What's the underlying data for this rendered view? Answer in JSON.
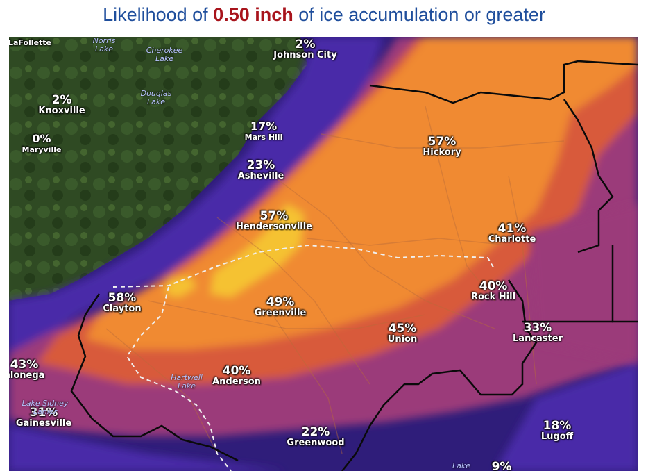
{
  "title": {
    "prefix": "Likelihood of ",
    "highlight": "0.50 inch",
    "suffix": " of ice accumulation or greater"
  },
  "colors": {
    "title_text": "#1f4e9c",
    "title_highlight": "#a8141c",
    "green_terrain": "#2f4a23",
    "deep_purple": "#2f1d7a",
    "purple": "#4a2aa8",
    "magenta": "#9b3a7a",
    "red_orange": "#d85a3a",
    "orange": "#f08a32",
    "yellow": "#f5c232"
  },
  "cities": [
    {
      "id": "lafollette",
      "pct": "",
      "name": "LaFollette"
    },
    {
      "id": "johnson-city",
      "pct": "2%",
      "name": "Johnson City"
    },
    {
      "id": "knoxville",
      "pct": "2%",
      "name": "Knoxville"
    },
    {
      "id": "maryville",
      "pct": "0%",
      "name": "Maryville"
    },
    {
      "id": "mars-hill",
      "pct": "17%",
      "name": "Mars Hill"
    },
    {
      "id": "asheville",
      "pct": "23%",
      "name": "Asheville"
    },
    {
      "id": "hickory",
      "pct": "57%",
      "name": "Hickory"
    },
    {
      "id": "hendersonville",
      "pct": "57%",
      "name": "Hendersonville"
    },
    {
      "id": "charlotte",
      "pct": "41%",
      "name": "Charlotte"
    },
    {
      "id": "clayton",
      "pct": "58%",
      "name": "Clayton"
    },
    {
      "id": "greenville",
      "pct": "49%",
      "name": "Greenville"
    },
    {
      "id": "rock-hill",
      "pct": "40%",
      "name": "Rock Hill"
    },
    {
      "id": "union",
      "pct": "45%",
      "name": "Union"
    },
    {
      "id": "lancaster",
      "pct": "33%",
      "name": "Lancaster"
    },
    {
      "id": "dahlonega",
      "pct": "43%",
      "name": "hlonega"
    },
    {
      "id": "anderson",
      "pct": "40%",
      "name": "Anderson"
    },
    {
      "id": "gainesville",
      "pct": "31%",
      "name": "Gainesville"
    },
    {
      "id": "greenwood",
      "pct": "22%",
      "name": "Greenwood"
    },
    {
      "id": "lugoff",
      "pct": "18%",
      "name": "Lugoff"
    },
    {
      "id": "bottom-edge",
      "pct": "9%",
      "name": ""
    }
  ],
  "lakes": [
    {
      "id": "norris",
      "name": "Norris\nLake"
    },
    {
      "id": "cherokee",
      "name": "Cherokee\nLake"
    },
    {
      "id": "douglas",
      "name": "Douglas\nLake"
    },
    {
      "id": "hartwell",
      "name": "Hartwell\nLake"
    },
    {
      "id": "lanier",
      "name": "Lake Sidney\nLanier"
    },
    {
      "id": "bottom-lake",
      "name": "Lake"
    }
  ]
}
